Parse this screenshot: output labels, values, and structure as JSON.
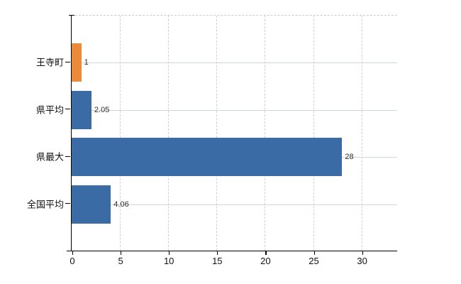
{
  "chart_data": {
    "type": "bar",
    "orientation": "horizontal",
    "title": "",
    "xlabel": "",
    "ylabel": "",
    "legend_position": "none",
    "categories": [
      "王寺町",
      "県平均",
      "県最大",
      "全国平均"
    ],
    "values": [
      1,
      2.05,
      28,
      4.06
    ],
    "value_labels": [
      "1",
      "2.05",
      "28",
      "4.06"
    ],
    "bar_colors": [
      "#ec8a3a",
      "#3b6ba4",
      "#3b6ba4",
      "#3b6ba4"
    ],
    "xlim": [
      0,
      33.7
    ],
    "x_ticks": [
      0,
      5,
      10,
      15,
      20,
      25,
      30
    ],
    "x_tick_labels": [
      "0",
      "5",
      "10",
      "15",
      "20",
      "25",
      "30"
    ],
    "grid": {
      "vertical_style": "dashed",
      "horizontal_style": "solid",
      "vertical_color": "#d6ced6",
      "horizontal_color": "#cdd9cd",
      "top_border_style": "dashed",
      "top_border_color": "#cccccc"
    },
    "colors": {
      "accent_orange": "#ec8a3a",
      "accent_blue": "#3b6ba4",
      "axis": "#000000",
      "value_label_text": "#2d2d2d",
      "tick_label_text": "#111111",
      "background": "#ffffff"
    }
  }
}
